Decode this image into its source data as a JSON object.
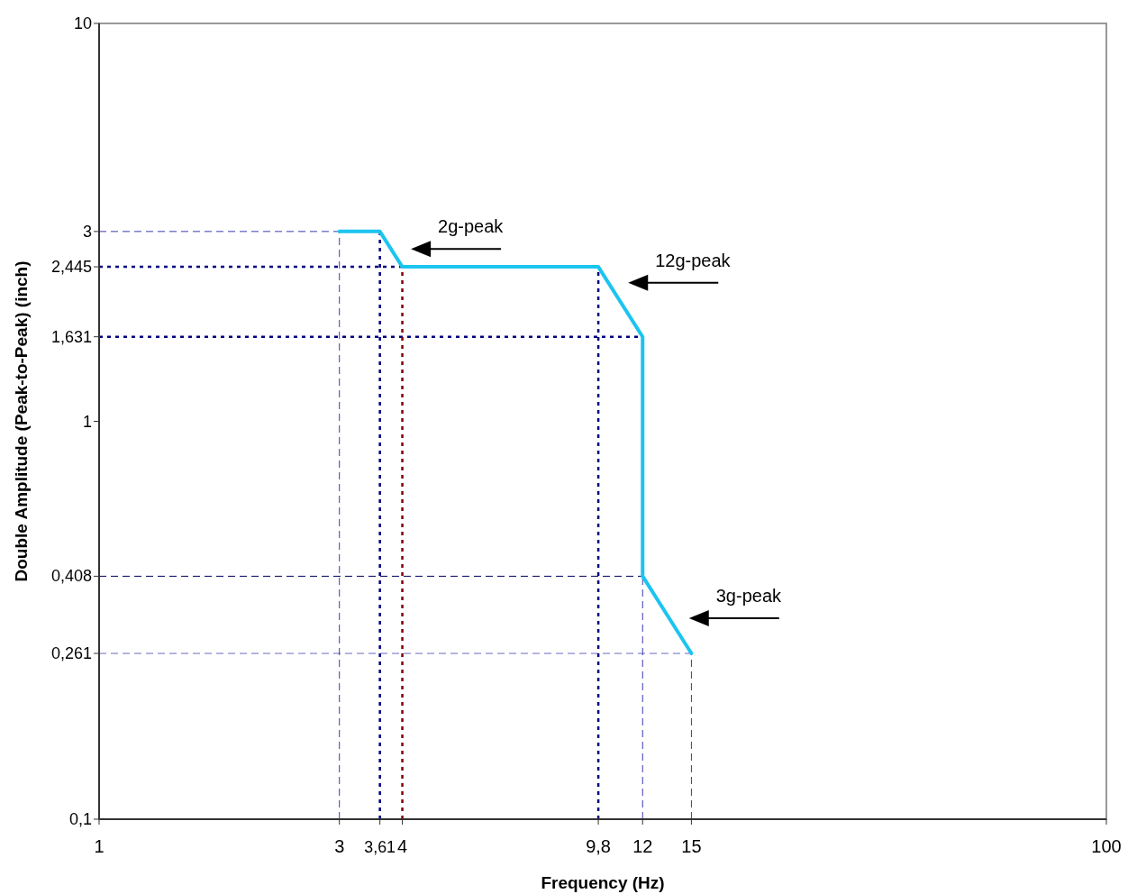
{
  "chart_data": {
    "type": "line",
    "xlabel": "Frequency (Hz)",
    "ylabel": "Double Amplitude (Peak-to-Peak) (inch)",
    "log": "xy",
    "grid": false,
    "marker": "none",
    "line_style": "solid",
    "xlim": [
      1,
      100
    ],
    "ylim": [
      0.1,
      10
    ],
    "xticks": [
      1,
      3,
      {
        "value": 3.61,
        "label": "3,61"
      },
      4,
      {
        "value": 9.8,
        "label": "9,8"
      },
      12,
      15,
      100
    ],
    "yticks": [
      {
        "value": 0.1,
        "label": "0,1"
      },
      {
        "value": 0.261,
        "label": "0,261"
      },
      {
        "value": 0.408,
        "label": "0,408"
      },
      1,
      {
        "value": 1.631,
        "label": "1,631"
      },
      {
        "value": 2.445,
        "label": "2,445"
      },
      3,
      10
    ],
    "x": [
      3,
      3.61,
      4,
      9.8,
      12,
      12,
      15
    ],
    "series": [
      {
        "color": "#1cc4f0",
        "values": [
          3,
          3,
          2.445,
          2.445,
          1.631,
          0.408,
          0.261
        ]
      }
    ],
    "ref_lines": [
      {
        "axis": "y",
        "value": 3,
        "color": "#3a3ab0",
        "line_style": "dashed"
      },
      {
        "axis": "y",
        "value": 2.445,
        "color": "#000080",
        "line_style": "dotted"
      },
      {
        "axis": "y",
        "value": 1.631,
        "color": "#000080",
        "line_style": "dotted"
      },
      {
        "axis": "y",
        "value": 0.408,
        "color": "#000060",
        "line_style": "dashed"
      },
      {
        "axis": "y",
        "value": 0.261,
        "color": "#6a6ac0",
        "line_style": "dashed"
      },
      {
        "axis": "x",
        "value": 3,
        "color": "#3a3ab0",
        "line_style": "dashed"
      },
      {
        "axis": "x",
        "value": 3.61,
        "color": "#000080",
        "line_style": "dotted"
      },
      {
        "axis": "x",
        "value": 4,
        "color": "#800000",
        "line_style": "dotted"
      },
      {
        "axis": "x",
        "value": 9.8,
        "color": "#000080",
        "line_style": "dotted"
      },
      {
        "axis": "x",
        "value": 12,
        "color": "#3a3ab0",
        "line_style": "dashed"
      },
      {
        "axis": "x",
        "value": 15,
        "color": "#3a3ab0",
        "line_style": "dashed"
      }
    ],
    "annotations": [
      {
        "text": "2g-peak",
        "x": 3.8,
        "y": 2.71
      },
      {
        "text": "12g-peak",
        "x": 10.26,
        "y": 2.23
      },
      {
        "text": "3g-peak",
        "x": 13.55,
        "y": 0.32
      }
    ]
  }
}
